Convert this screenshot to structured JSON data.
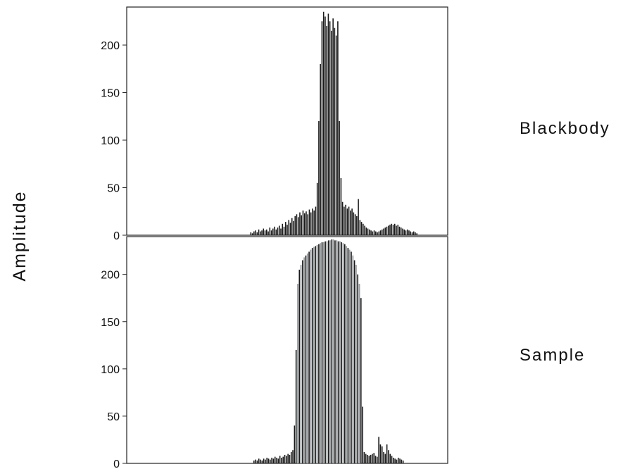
{
  "chart_data": [
    {
      "type": "bar",
      "panel": "top",
      "label": "Blackbody",
      "ylabel": "Amplitude",
      "ylim": [
        0,
        240
      ],
      "yticks": [
        0,
        50,
        100,
        150,
        200
      ],
      "bar_color": "#1a1a1a",
      "values": [
        0,
        0,
        0,
        0,
        0,
        0,
        0,
        0,
        0,
        0,
        0,
        0,
        0,
        0,
        0,
        0,
        0,
        0,
        0,
        0,
        0,
        0,
        0,
        0,
        0,
        0,
        0,
        0,
        0,
        0,
        0,
        0,
        0,
        0,
        0,
        0,
        0,
        0,
        0,
        0,
        0,
        0,
        0,
        0,
        0,
        0,
        0,
        0,
        0,
        0,
        0,
        0,
        0,
        0,
        0,
        0,
        0,
        0,
        0,
        0,
        0,
        0,
        0,
        0,
        0,
        0,
        0,
        0,
        0,
        0,
        0,
        0,
        0,
        0,
        0,
        0,
        0,
        0,
        3,
        2,
        4,
        5,
        3,
        6,
        4,
        5,
        7,
        5,
        6,
        4,
        8,
        5,
        7,
        9,
        6,
        8,
        10,
        7,
        12,
        9,
        14,
        11,
        16,
        13,
        18,
        15,
        20,
        22,
        19,
        24,
        21,
        26,
        23,
        25,
        22,
        27,
        24,
        28,
        26,
        30,
        55,
        120,
        180,
        225,
        235,
        230,
        220,
        233,
        225,
        215,
        228,
        218,
        210,
        225,
        120,
        60,
        35,
        30,
        32,
        28,
        30,
        26,
        28,
        24,
        22,
        20,
        38,
        16,
        14,
        12,
        10,
        8,
        7,
        6,
        5,
        4,
        5,
        4,
        3,
        4,
        5,
        6,
        7,
        8,
        9,
        10,
        11,
        12,
        11,
        12,
        10,
        11,
        9,
        8,
        7,
        6,
        5,
        6,
        5,
        4,
        3,
        4,
        3,
        2,
        0,
        0,
        0,
        0,
        0,
        0,
        0,
        0,
        0,
        0,
        0,
        0,
        0,
        0,
        0,
        0,
        0,
        0,
        0
      ]
    },
    {
      "type": "bar",
      "panel": "bottom",
      "label": "Sample",
      "ylabel": "Amplitude",
      "ylim": [
        0,
        240
      ],
      "yticks": [
        0,
        50,
        100,
        150,
        200
      ],
      "bar_color": "#1a1a1a",
      "overlay_color": "#c9cdd0",
      "values": [
        0,
        0,
        0,
        0,
        0,
        0,
        0,
        0,
        0,
        0,
        0,
        0,
        0,
        0,
        0,
        0,
        0,
        0,
        0,
        0,
        0,
        0,
        0,
        0,
        0,
        0,
        0,
        0,
        0,
        0,
        0,
        0,
        0,
        0,
        0,
        0,
        0,
        0,
        0,
        0,
        0,
        0,
        0,
        0,
        0,
        0,
        0,
        0,
        0,
        0,
        0,
        0,
        0,
        0,
        0,
        0,
        0,
        0,
        0,
        0,
        0,
        0,
        0,
        0,
        0,
        0,
        0,
        0,
        0,
        0,
        0,
        0,
        0,
        0,
        0,
        0,
        0,
        0,
        3,
        4,
        3,
        5,
        4,
        3,
        5,
        4,
        6,
        5,
        4,
        6,
        5,
        7,
        6,
        5,
        8,
        6,
        7,
        9,
        8,
        10,
        9,
        12,
        14,
        40,
        120,
        190,
        205,
        210,
        215,
        218,
        220,
        222,
        224,
        226,
        228,
        229,
        230,
        231,
        232,
        233,
        234,
        234,
        235,
        235,
        236,
        236,
        237,
        237,
        236,
        236,
        235,
        235,
        234,
        233,
        232,
        230,
        228,
        226,
        224,
        220,
        215,
        210,
        200,
        190,
        175,
        60,
        12,
        10,
        9,
        8,
        9,
        10,
        11,
        8,
        7,
        28,
        20,
        18,
        12,
        10,
        20,
        14,
        10,
        8,
        6,
        5,
        4,
        6,
        5,
        4,
        3,
        0,
        0,
        0,
        0,
        0,
        0,
        0,
        0,
        0,
        0,
        0,
        0,
        0,
        0,
        0,
        0,
        0,
        0,
        0,
        0,
        0,
        0,
        0,
        0,
        0,
        0,
        0
      ]
    }
  ]
}
